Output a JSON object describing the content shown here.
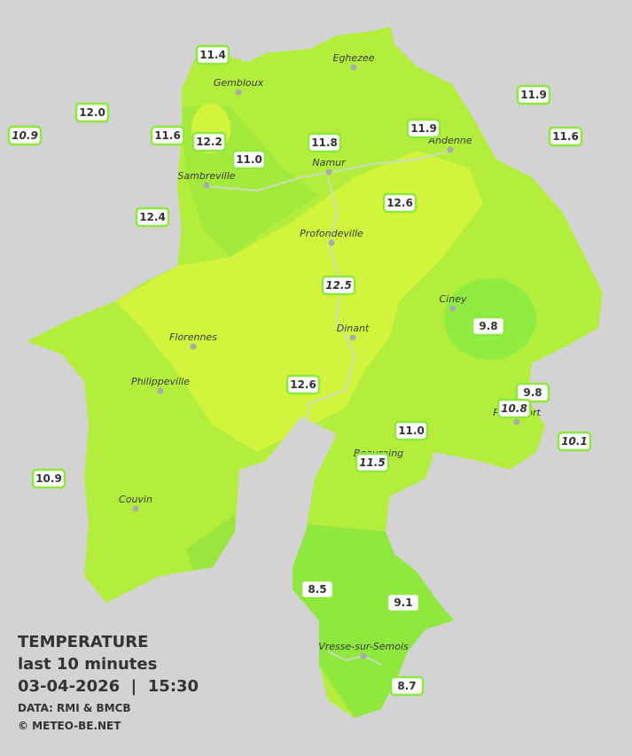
{
  "stations": [
    {
      "value": "11.4",
      "italic": false
    },
    {
      "value": "12.0",
      "italic": false
    },
    {
      "value": "10.9",
      "italic": true
    },
    {
      "value": "11.6",
      "italic": false
    },
    {
      "value": "12.2",
      "italic": false
    },
    {
      "value": "11.0",
      "italic": false
    },
    {
      "value": "11.8",
      "italic": false
    },
    {
      "value": "11.9",
      "italic": false
    },
    {
      "value": "11.9",
      "italic": false
    },
    {
      "value": "11.6",
      "italic": false
    },
    {
      "value": "12.4",
      "italic": false
    },
    {
      "value": "12.6",
      "italic": false
    },
    {
      "value": "12.5",
      "italic": true
    },
    {
      "value": "9.8",
      "italic": false
    },
    {
      "value": "12.6",
      "italic": false
    },
    {
      "value": "9.8",
      "italic": false
    },
    {
      "value": "10.8",
      "italic": true
    },
    {
      "value": "10.1",
      "italic": true
    },
    {
      "value": "11.0",
      "italic": false
    },
    {
      "value": "11.5",
      "italic": true
    },
    {
      "value": "10.9",
      "italic": false
    },
    {
      "value": "8.5",
      "italic": false
    },
    {
      "value": "9.1",
      "italic": false
    },
    {
      "value": "8.7",
      "italic": false
    }
  ],
  "cities": [
    "Eghezee",
    "Gembloux",
    "Andenne",
    "Namur",
    "Sambreville",
    "Profondeville",
    "Ciney",
    "Dinant",
    "Florennes",
    "Philippeville",
    "Rochefort",
    "Beauraing",
    "Couvin",
    "Vresse-sur-Semois"
  ],
  "caption": {
    "title": "TEMPERATURE",
    "subtitle": "last 10 minutes",
    "timestamp": "03-04-2026  |  15:30",
    "source": "DATA: RMI & BMCB",
    "copyright": "© METEO-BE.NET"
  }
}
